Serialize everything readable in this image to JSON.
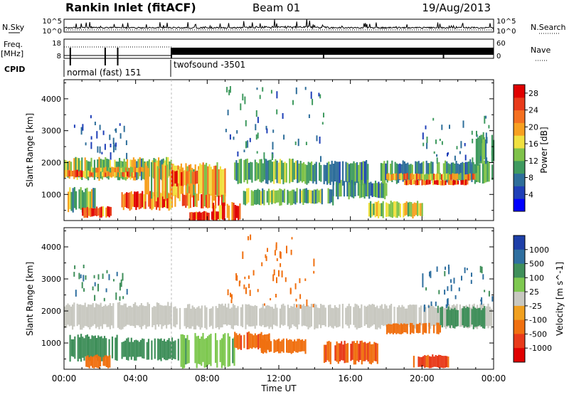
{
  "header": {
    "title": "Rankin Inlet (fitACF)",
    "beam": "Beam 01",
    "date": "19/Aug/2013"
  },
  "noise_panel": {
    "left_label": "N.Sky",
    "right_label": "N.Search",
    "left_ticks": [
      "10^5",
      "10^0"
    ],
    "right_ticks": [
      "10^5",
      "10^0"
    ]
  },
  "freq_panel": {
    "left_label_1": "Freq.",
    "left_label_2": "[MHz]",
    "right_label": "Nave",
    "left_ticks": [
      "18",
      "8"
    ],
    "right_ticks": [
      "60",
      "0"
    ]
  },
  "cpid_panel": {
    "label": "CPID",
    "segments": [
      {
        "start_hour": 0,
        "end_hour": 6,
        "name": "normal (fast) 151"
      },
      {
        "start_hour": 6,
        "end_hour": 24,
        "name": "twofsound -3501"
      }
    ]
  },
  "chart_data": [
    {
      "type": "heatmap",
      "parameter": "Power",
      "ylabel": "Slant Range [km]",
      "xlabel": "Time UT",
      "x_ticks": [
        "00:00",
        "04:00",
        "08:00",
        "12:00",
        "16:00",
        "20:00",
        "00:00"
      ],
      "x_range_hours": [
        0,
        24
      ],
      "y_range_km": [
        180,
        4600
      ],
      "y_ticks": [
        1000,
        2000,
        3000,
        4000
      ],
      "colorbar": {
        "label": "Power [dB]",
        "ticks": [
          4,
          8,
          12,
          16,
          20,
          24,
          28
        ],
        "range": [
          0,
          30
        ],
        "colors": [
          "#0000ff",
          "#1f3fb8",
          "#2e6e9a",
          "#3f9a5f",
          "#7fc24a",
          "#f0e040",
          "#f7a020",
          "#f47020",
          "#e83a1a",
          "#e00000"
        ]
      },
      "bands": [
        {
          "t0": 0.0,
          "t1": 6.0,
          "r0": 1500,
          "r1": 2100,
          "value": 14
        },
        {
          "t0": 0.0,
          "t1": 4.0,
          "r0": 1550,
          "r1": 1750,
          "value": 22
        },
        {
          "t0": 1.5,
          "t1": 4.5,
          "r0": 1700,
          "r1": 1850,
          "value": 18
        },
        {
          "t0": 0.2,
          "t1": 1.8,
          "r0": 500,
          "r1": 1150,
          "value": 14
        },
        {
          "t0": 1.0,
          "t1": 2.6,
          "r0": 300,
          "r1": 600,
          "value": 24
        },
        {
          "t0": 3.2,
          "t1": 6.2,
          "r0": 550,
          "r1": 1050,
          "value": 24
        },
        {
          "t0": 4.5,
          "t1": 9.0,
          "r0": 900,
          "r1": 1900,
          "value": 18
        },
        {
          "t0": 6.0,
          "t1": 7.5,
          "r0": 1300,
          "r1": 1750,
          "value": 22
        },
        {
          "t0": 7.0,
          "t1": 8.6,
          "r0": 200,
          "r1": 450,
          "value": 28
        },
        {
          "t0": 6.5,
          "t1": 9.0,
          "r0": 600,
          "r1": 1000,
          "value": 22
        },
        {
          "t0": 8.3,
          "t1": 9.8,
          "r0": 200,
          "r1": 700,
          "value": 24
        },
        {
          "t0": 9.5,
          "t1": 13.0,
          "r0": 1400,
          "r1": 2050,
          "value": 12
        },
        {
          "t0": 13.0,
          "t1": 17.0,
          "r0": 1350,
          "r1": 2000,
          "value": 10
        },
        {
          "t0": 10.0,
          "t1": 15.0,
          "r0": 700,
          "r1": 1150,
          "value": 12
        },
        {
          "t0": 15.0,
          "t1": 18.0,
          "r0": 900,
          "r1": 1400,
          "value": 10
        },
        {
          "t0": 17.5,
          "t1": 24.0,
          "r0": 1400,
          "r1": 2000,
          "value": 10
        },
        {
          "t0": 18.0,
          "t1": 23.0,
          "r0": 1450,
          "r1": 1650,
          "value": 20
        },
        {
          "t0": 19.0,
          "t1": 22.5,
          "r0": 1300,
          "r1": 1450,
          "value": 24
        },
        {
          "t0": 17.0,
          "t1": 20.0,
          "r0": 300,
          "r1": 750,
          "value": 14
        },
        {
          "t0": 23.0,
          "t1": 24.0,
          "r0": 2000,
          "r1": 2800,
          "value": 10
        }
      ],
      "scatter_regions": [
        {
          "t0": 0.5,
          "t1": 3.5,
          "r0": 2300,
          "r1": 3500,
          "value": 6
        },
        {
          "t0": 9.0,
          "t1": 14.5,
          "r0": 2200,
          "r1": 4400,
          "value": 8
        },
        {
          "t0": 20.0,
          "t1": 24.0,
          "r0": 2100,
          "r1": 3500,
          "value": 8
        }
      ]
    },
    {
      "type": "heatmap",
      "parameter": "Velocity",
      "ylabel": "Slant Range [km]",
      "xlabel": "Time UT",
      "x_ticks": [
        "00:00",
        "04:00",
        "08:00",
        "12:00",
        "16:00",
        "20:00",
        "00:00"
      ],
      "x_range_hours": [
        0,
        24
      ],
      "y_range_km": [
        180,
        4600
      ],
      "y_ticks": [
        1000,
        2000,
        3000,
        4000
      ],
      "colorbar": {
        "label": "Velocity [m s^-1]",
        "ticks": [
          "1000",
          "500",
          "100",
          "25",
          "-25",
          "-100",
          "-500",
          "-1000"
        ],
        "colors": [
          "#1e3fa8",
          "#2f6fa0",
          "#3f8f5a",
          "#7ec850",
          "#c8c8c0",
          "#f0a020",
          "#f07010",
          "#e83a1a",
          "#e00000"
        ]
      },
      "bands": [
        {
          "t0": 0.0,
          "t1": 6.0,
          "r0": 1500,
          "r1": 2200,
          "value": "gs"
        },
        {
          "t0": 6.0,
          "t1": 24.0,
          "r0": 1500,
          "r1": 2150,
          "value": "gs"
        },
        {
          "t0": 0.3,
          "t1": 3.0,
          "r0": 500,
          "r1": 1200,
          "value": 200
        },
        {
          "t0": 1.2,
          "t1": 2.6,
          "r0": 250,
          "r1": 600,
          "value": -200
        },
        {
          "t0": 3.2,
          "t1": 6.5,
          "r0": 500,
          "r1": 1100,
          "value": 150
        },
        {
          "t0": 6.5,
          "t1": 9.5,
          "r0": 300,
          "r1": 1200,
          "value": 50
        },
        {
          "t0": 9.5,
          "t1": 11.5,
          "r0": 800,
          "r1": 1300,
          "value": -250
        },
        {
          "t0": 11.0,
          "t1": 13.5,
          "r0": 700,
          "r1": 1100,
          "value": -150
        },
        {
          "t0": 14.5,
          "t1": 17.5,
          "r0": 400,
          "r1": 1000,
          "value": -300
        },
        {
          "t0": 18.0,
          "t1": 21.0,
          "r0": 1300,
          "r1": 1600,
          "value": -150
        },
        {
          "t0": 19.5,
          "t1": 21.5,
          "r0": 250,
          "r1": 600,
          "value": -350
        },
        {
          "t0": 21.0,
          "t1": 23.5,
          "r0": 1500,
          "r1": 2100,
          "value": 150
        }
      ],
      "scatter_regions": [
        {
          "t0": 0.5,
          "t1": 3.5,
          "r0": 2300,
          "r1": 3500,
          "value": 300
        },
        {
          "t0": 9.0,
          "t1": 14.5,
          "r0": 2200,
          "r1": 4400,
          "value": -150
        },
        {
          "t0": 20.0,
          "t1": 24.0,
          "r0": 2100,
          "r1": 3500,
          "value": 400
        }
      ]
    }
  ]
}
